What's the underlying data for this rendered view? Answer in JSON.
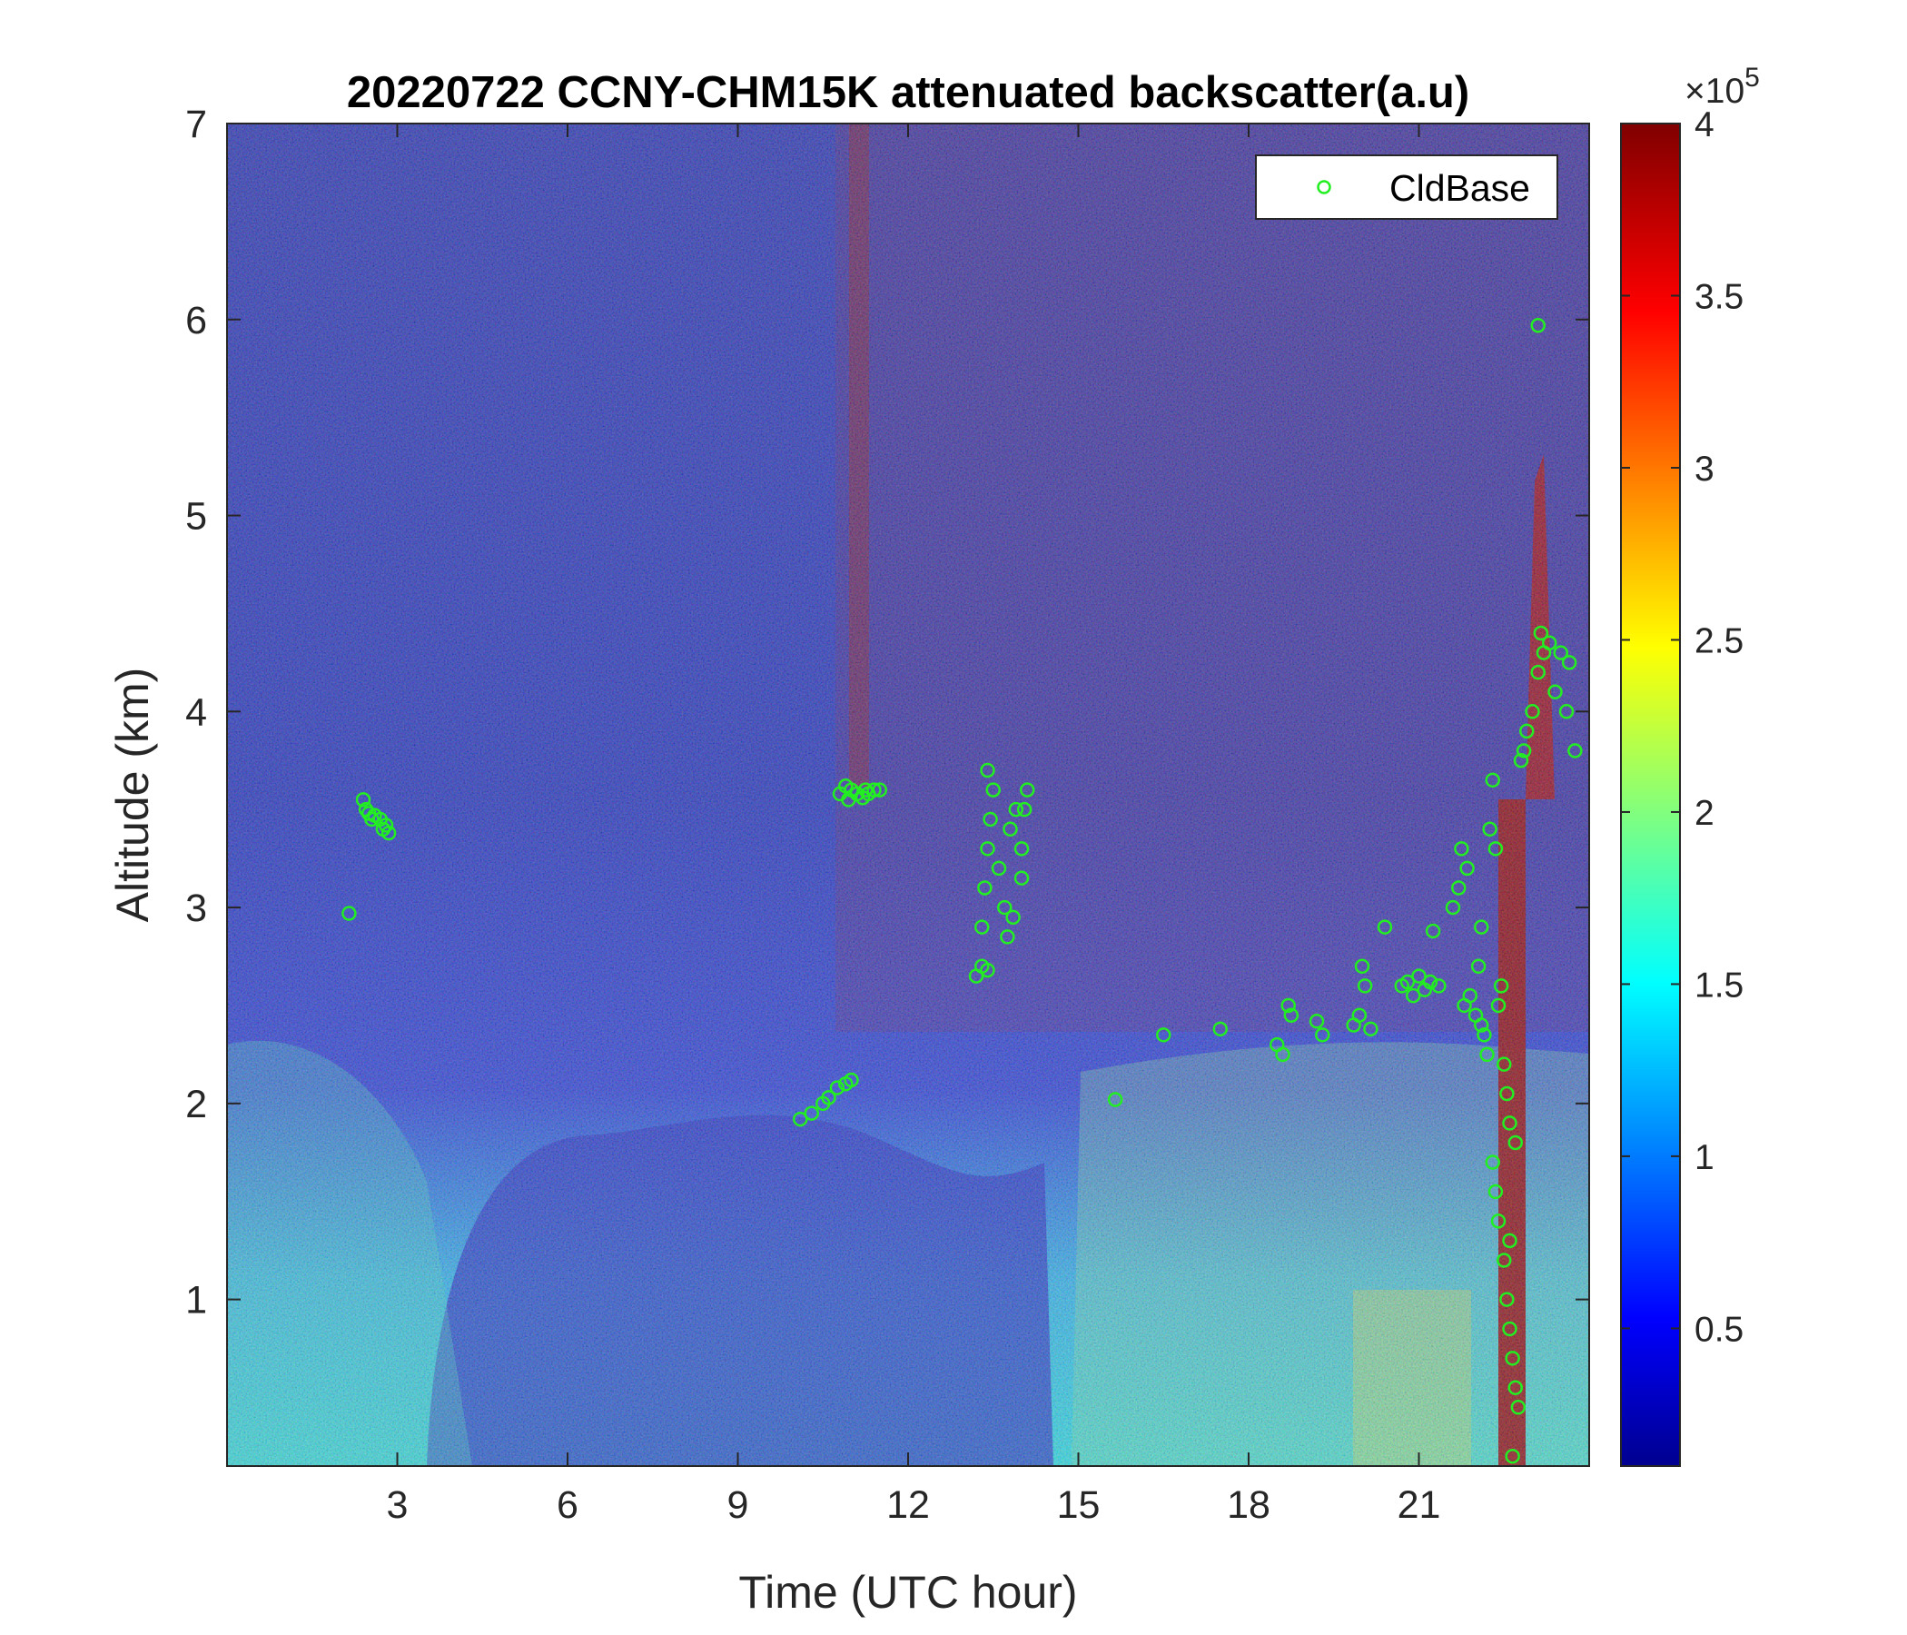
{
  "chart_data": {
    "type": "heatmap",
    "title": "20220722 CCNY-CHM15K attenuated backscatter(a.u)",
    "xlabel": "Time (UTC hour)",
    "ylabel": "Altitude (km)",
    "xlim": [
      0,
      24
    ],
    "ylim": [
      0.15,
      7
    ],
    "x_ticks": [
      3,
      6,
      9,
      12,
      15,
      18,
      21
    ],
    "y_ticks": [
      1,
      2,
      3,
      4,
      5,
      6,
      7
    ],
    "colormap": "jet",
    "colorbar": {
      "range": [
        0.1,
        4
      ],
      "ticks": [
        0.5,
        1,
        1.5,
        2,
        2.5,
        3,
        3.5,
        4
      ],
      "exponent_label": "×10",
      "exponent": "5"
    },
    "legend": {
      "position": "top-right",
      "entries": [
        "CldBase"
      ]
    },
    "colors": {
      "cloud_base": "#22ee22",
      "axis": "#262626"
    },
    "series": [
      {
        "name": "CldBase",
        "type": "scatter",
        "points": [
          [
            2.15,
            2.97
          ],
          [
            2.4,
            3.55
          ],
          [
            2.45,
            3.5
          ],
          [
            2.5,
            3.48
          ],
          [
            2.55,
            3.45
          ],
          [
            2.6,
            3.47
          ],
          [
            2.7,
            3.45
          ],
          [
            2.75,
            3.4
          ],
          [
            2.8,
            3.42
          ],
          [
            2.85,
            3.38
          ],
          [
            10.1,
            1.92
          ],
          [
            10.3,
            1.95
          ],
          [
            10.5,
            2.0
          ],
          [
            10.6,
            2.03
          ],
          [
            10.75,
            2.08
          ],
          [
            10.9,
            2.1
          ],
          [
            11.0,
            2.12
          ],
          [
            10.8,
            3.58
          ],
          [
            10.9,
            3.62
          ],
          [
            11.0,
            3.6
          ],
          [
            11.1,
            3.58
          ],
          [
            11.2,
            3.56
          ],
          [
            11.3,
            3.58
          ],
          [
            11.4,
            3.6
          ],
          [
            11.5,
            3.6
          ],
          [
            10.95,
            3.55
          ],
          [
            11.25,
            3.6
          ],
          [
            13.2,
            2.65
          ],
          [
            13.3,
            2.7
          ],
          [
            13.4,
            2.68
          ],
          [
            13.3,
            2.9
          ],
          [
            13.35,
            3.1
          ],
          [
            13.4,
            3.3
          ],
          [
            13.45,
            3.45
          ],
          [
            13.5,
            3.6
          ],
          [
            13.4,
            3.7
          ],
          [
            13.6,
            3.2
          ],
          [
            13.7,
            3.0
          ],
          [
            13.75,
            2.85
          ],
          [
            13.8,
            3.4
          ],
          [
            13.9,
            3.5
          ],
          [
            14.0,
            3.3
          ],
          [
            14.05,
            3.5
          ],
          [
            14.1,
            3.6
          ],
          [
            14.0,
            3.15
          ],
          [
            13.85,
            2.95
          ],
          [
            15.65,
            2.02
          ],
          [
            16.5,
            2.35
          ],
          [
            17.5,
            2.38
          ],
          [
            18.5,
            2.3
          ],
          [
            18.6,
            2.25
          ],
          [
            18.7,
            2.5
          ],
          [
            18.75,
            2.45
          ],
          [
            19.2,
            2.42
          ],
          [
            19.3,
            2.35
          ],
          [
            19.85,
            2.4
          ],
          [
            19.95,
            2.45
          ],
          [
            20.05,
            2.6
          ],
          [
            20.0,
            2.7
          ],
          [
            20.15,
            2.38
          ],
          [
            20.4,
            2.9
          ],
          [
            20.7,
            2.6
          ],
          [
            20.8,
            2.62
          ],
          [
            20.9,
            2.55
          ],
          [
            21.0,
            2.65
          ],
          [
            21.1,
            2.58
          ],
          [
            21.2,
            2.62
          ],
          [
            21.25,
            2.88
          ],
          [
            21.35,
            2.6
          ],
          [
            21.6,
            3.0
          ],
          [
            21.7,
            3.1
          ],
          [
            21.75,
            3.3
          ],
          [
            21.85,
            3.2
          ],
          [
            21.8,
            2.5
          ],
          [
            21.9,
            2.55
          ],
          [
            22.0,
            2.45
          ],
          [
            22.05,
            2.7
          ],
          [
            22.1,
            2.4
          ],
          [
            22.15,
            2.35
          ],
          [
            22.2,
            2.25
          ],
          [
            22.1,
            2.9
          ],
          [
            22.25,
            3.4
          ],
          [
            22.3,
            3.65
          ],
          [
            22.35,
            3.3
          ],
          [
            22.4,
            2.5
          ],
          [
            22.45,
            2.6
          ],
          [
            22.5,
            2.2
          ],
          [
            22.55,
            2.05
          ],
          [
            22.6,
            1.9
          ],
          [
            22.7,
            1.8
          ],
          [
            22.3,
            1.7
          ],
          [
            22.35,
            1.55
          ],
          [
            22.4,
            1.4
          ],
          [
            22.5,
            1.2
          ],
          [
            22.55,
            1.0
          ],
          [
            22.6,
            0.85
          ],
          [
            22.65,
            0.7
          ],
          [
            22.7,
            0.55
          ],
          [
            22.75,
            0.45
          ],
          [
            22.65,
            0.2
          ],
          [
            22.6,
            1.3
          ],
          [
            22.8,
            3.75
          ],
          [
            22.85,
            3.8
          ],
          [
            22.9,
            3.9
          ],
          [
            23.0,
            4.0
          ],
          [
            23.1,
            4.2
          ],
          [
            23.2,
            4.3
          ],
          [
            23.15,
            4.4
          ],
          [
            23.3,
            4.35
          ],
          [
            23.4,
            4.1
          ],
          [
            23.5,
            4.3
          ],
          [
            23.6,
            4.0
          ],
          [
            23.75,
            3.8
          ],
          [
            23.65,
            4.25
          ],
          [
            23.1,
            5.97
          ]
        ]
      }
    ]
  }
}
